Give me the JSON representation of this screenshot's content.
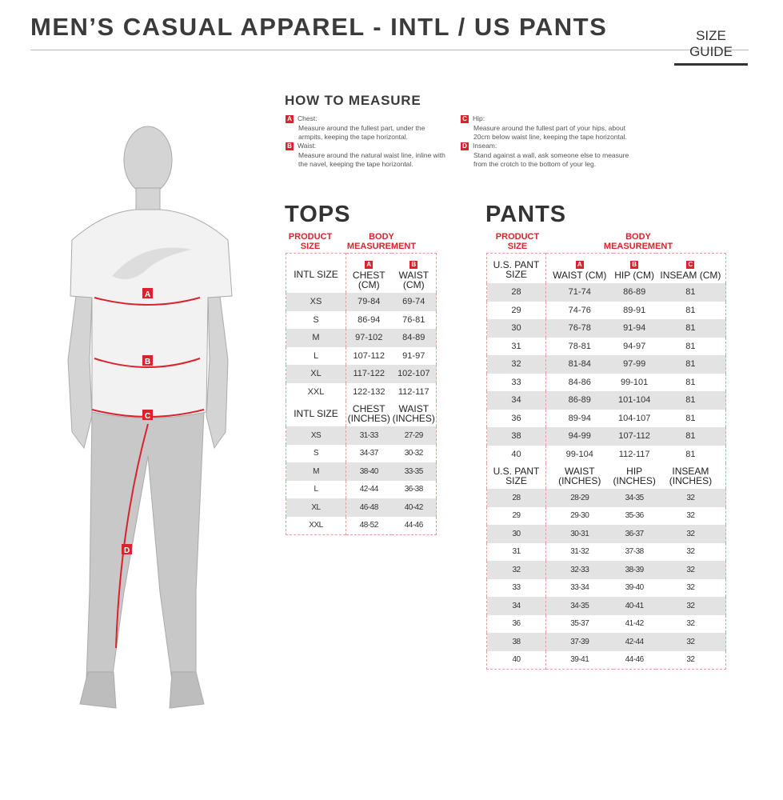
{
  "title": "MEN’S CASUAL APPAREL - INTL / US PANTS",
  "size_guide": "SIZE GUIDE",
  "how_to_measure": {
    "heading": "HOW TO MEASURE",
    "items": [
      {
        "letter": "A",
        "label": "Chest:",
        "text": "Measure around the fullest part, under the armpits, keeping the tape horizontal."
      },
      {
        "letter": "B",
        "label": "Waist:",
        "text": "Measure around the natural waist line, inline with the navel, keeping the tape horizontal."
      },
      {
        "letter": "C",
        "label": "Hip:",
        "text": "Measure around the fullest part of your hips, about 20cm below waist line, keeping the tape horizontal."
      },
      {
        "letter": "D",
        "label": "Inseam:",
        "text": "Stand against a wall, ask someone else to measure from the crotch to the bottom of your leg."
      }
    ]
  },
  "figure_labels": [
    "A",
    "B",
    "C",
    "D"
  ],
  "colors": {
    "accent": "#d9232e",
    "stripe": "#e3e3e3"
  },
  "tops": {
    "heading": "TOPS",
    "product_size": "PRODUCT SIZE",
    "body_measurement": "BODY MEASUREMENT",
    "cm": {
      "headers": [
        "INTL SIZE",
        "CHEST (CM)",
        "WAIST (CM)"
      ],
      "letters": [
        "A",
        "B"
      ],
      "rows": [
        [
          "XS",
          "79-84",
          "69-74"
        ],
        [
          "S",
          "86-94",
          "76-81"
        ],
        [
          "M",
          "97-102",
          "84-89"
        ],
        [
          "L",
          "107-112",
          "91-97"
        ],
        [
          "XL",
          "117-122",
          "102-107"
        ],
        [
          "XXL",
          "122-132",
          "112-117"
        ]
      ]
    },
    "inches": {
      "headers": [
        "INTL SIZE",
        "CHEST (INCHES)",
        "WAIST (INCHES)"
      ],
      "rows": [
        [
          "XS",
          "31-33",
          "27-29"
        ],
        [
          "S",
          "34-37",
          "30-32"
        ],
        [
          "M",
          "38-40",
          "33-35"
        ],
        [
          "L",
          "42-44",
          "36-38"
        ],
        [
          "XL",
          "46-48",
          "40-42"
        ],
        [
          "XXL",
          "48-52",
          "44-46"
        ]
      ]
    }
  },
  "pants": {
    "heading": "PANTS",
    "product_size": "PRODUCT SIZE",
    "body_measurement": "BODY MEASUREMENT",
    "cm": {
      "headers": [
        "U.S. PANT SIZE",
        "WAIST (CM)",
        "HIP (CM)",
        "INSEAM (CM)"
      ],
      "letters": [
        "A",
        "B",
        "C"
      ],
      "rows": [
        [
          "28",
          "71-74",
          "86-89",
          "81"
        ],
        [
          "29",
          "74-76",
          "89-91",
          "81"
        ],
        [
          "30",
          "76-78",
          "91-94",
          "81"
        ],
        [
          "31",
          "78-81",
          "94-97",
          "81"
        ],
        [
          "32",
          "81-84",
          "97-99",
          "81"
        ],
        [
          "33",
          "84-86",
          "99-101",
          "81"
        ],
        [
          "34",
          "86-89",
          "101-104",
          "81"
        ],
        [
          "36",
          "89-94",
          "104-107",
          "81"
        ],
        [
          "38",
          "94-99",
          "107-112",
          "81"
        ],
        [
          "40",
          "99-104",
          "112-117",
          "81"
        ]
      ]
    },
    "inches": {
      "headers": [
        "U.S. PANT SIZE",
        "WAIST (INCHES)",
        "HIP (INCHES)",
        "INSEAM (INCHES)"
      ],
      "rows": [
        [
          "28",
          "28-29",
          "34-35",
          "32"
        ],
        [
          "29",
          "29-30",
          "35-36",
          "32"
        ],
        [
          "30",
          "30-31",
          "36-37",
          "32"
        ],
        [
          "31",
          "31-32",
          "37-38",
          "32"
        ],
        [
          "32",
          "32-33",
          "38-39",
          "32"
        ],
        [
          "33",
          "33-34",
          "39-40",
          "32"
        ],
        [
          "34",
          "34-35",
          "40-41",
          "32"
        ],
        [
          "36",
          "35-37",
          "41-42",
          "32"
        ],
        [
          "38",
          "37-39",
          "42-44",
          "32"
        ],
        [
          "40",
          "39-41",
          "44-46",
          "32"
        ]
      ]
    }
  }
}
